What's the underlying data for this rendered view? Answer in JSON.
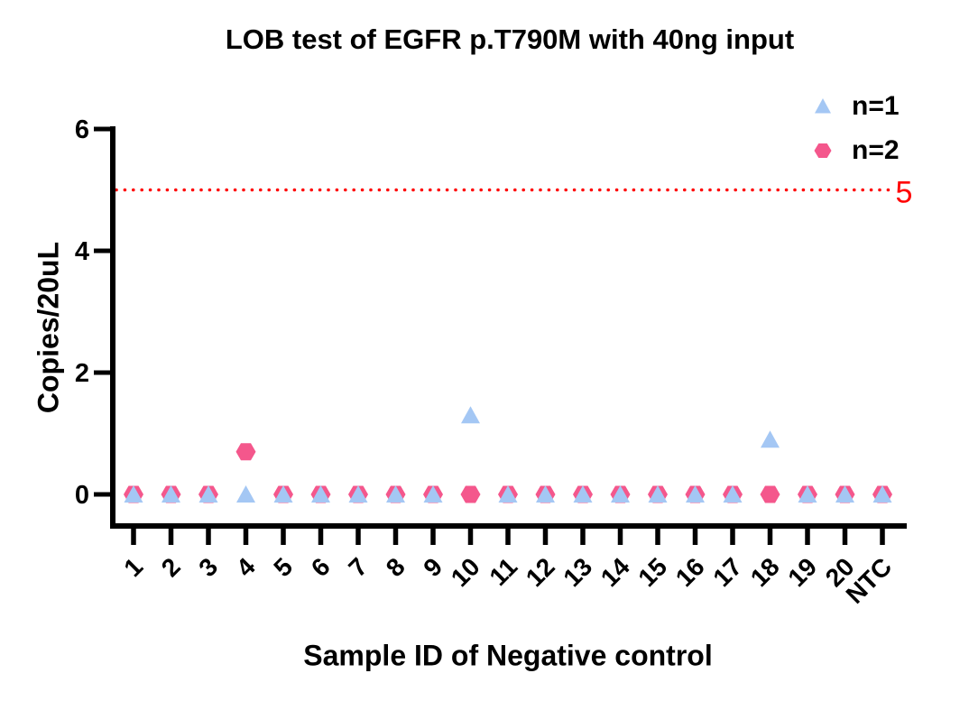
{
  "chart": {
    "title": "LOB test of EGFR p.T790M with 40ng input",
    "xlabel": "Sample ID of Negative control",
    "ylabel": "Copies/20uL",
    "axis_color": "#000000",
    "background_color": "#ffffff"
  },
  "chart_data": {
    "type": "scatter",
    "title": "LOB test of EGFR p.T790M with 40ng input",
    "xlabel": "Sample ID of Negative control",
    "ylabel": "Copies/20uL",
    "categories": [
      "1",
      "2",
      "3",
      "4",
      "5",
      "6",
      "7",
      "8",
      "9",
      "10",
      "11",
      "12",
      "13",
      "14",
      "15",
      "16",
      "17",
      "18",
      "19",
      "20",
      "NTC"
    ],
    "series": [
      {
        "name": "n=1",
        "marker": "triangle-marker",
        "color": "#a4c7f4",
        "values": [
          0,
          0,
          0,
          0,
          0,
          0,
          0,
          0,
          0,
          1.3,
          0,
          0,
          0,
          0,
          0,
          0,
          0,
          0.9,
          0,
          0,
          0
        ]
      },
      {
        "name": "n=2",
        "marker": "hexagon-marker",
        "color": "#f4578c",
        "values": [
          0,
          0,
          0,
          0.7,
          0,
          0,
          0,
          0,
          0,
          0,
          0,
          0,
          0,
          0,
          0,
          0,
          0,
          0,
          0,
          0,
          0
        ]
      }
    ],
    "ylim": [
      0,
      6
    ],
    "yticks": [
      "0",
      "2",
      "4",
      "6"
    ],
    "grid": "off",
    "legend_position": "top-right",
    "threshold": {
      "value": 5,
      "label": "5",
      "color": "#ff0000",
      "style": "dotted"
    }
  }
}
